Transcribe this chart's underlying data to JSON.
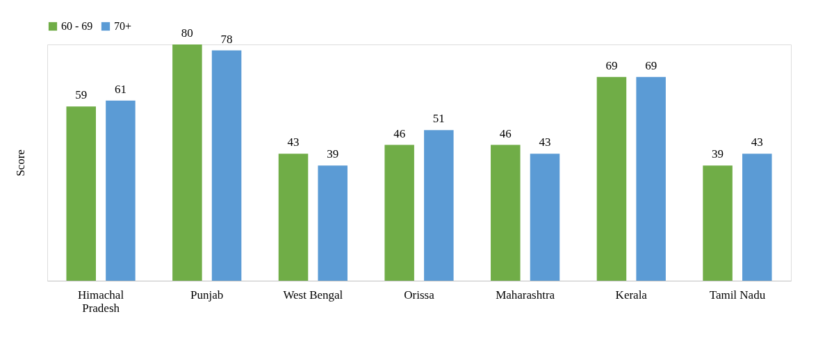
{
  "chart_data": {
    "type": "bar",
    "ylabel": "Score",
    "categories": [
      "Himachal Pradesh",
      "Punjab",
      "West Bengal",
      "Orissa",
      "Maharashtra",
      "Kerala",
      "Tamil Nadu"
    ],
    "series": [
      {
        "name": "60 - 69",
        "color": "#70ad47",
        "values": [
          59,
          80,
          43,
          46,
          46,
          69,
          39
        ]
      },
      {
        "name": "70+",
        "color": "#5b9bd5",
        "values": [
          61,
          78,
          39,
          51,
          43,
          69,
          43
        ]
      }
    ],
    "data_labels": true,
    "legend": "top",
    "grid": false,
    "tick_labels": "x"
  }
}
